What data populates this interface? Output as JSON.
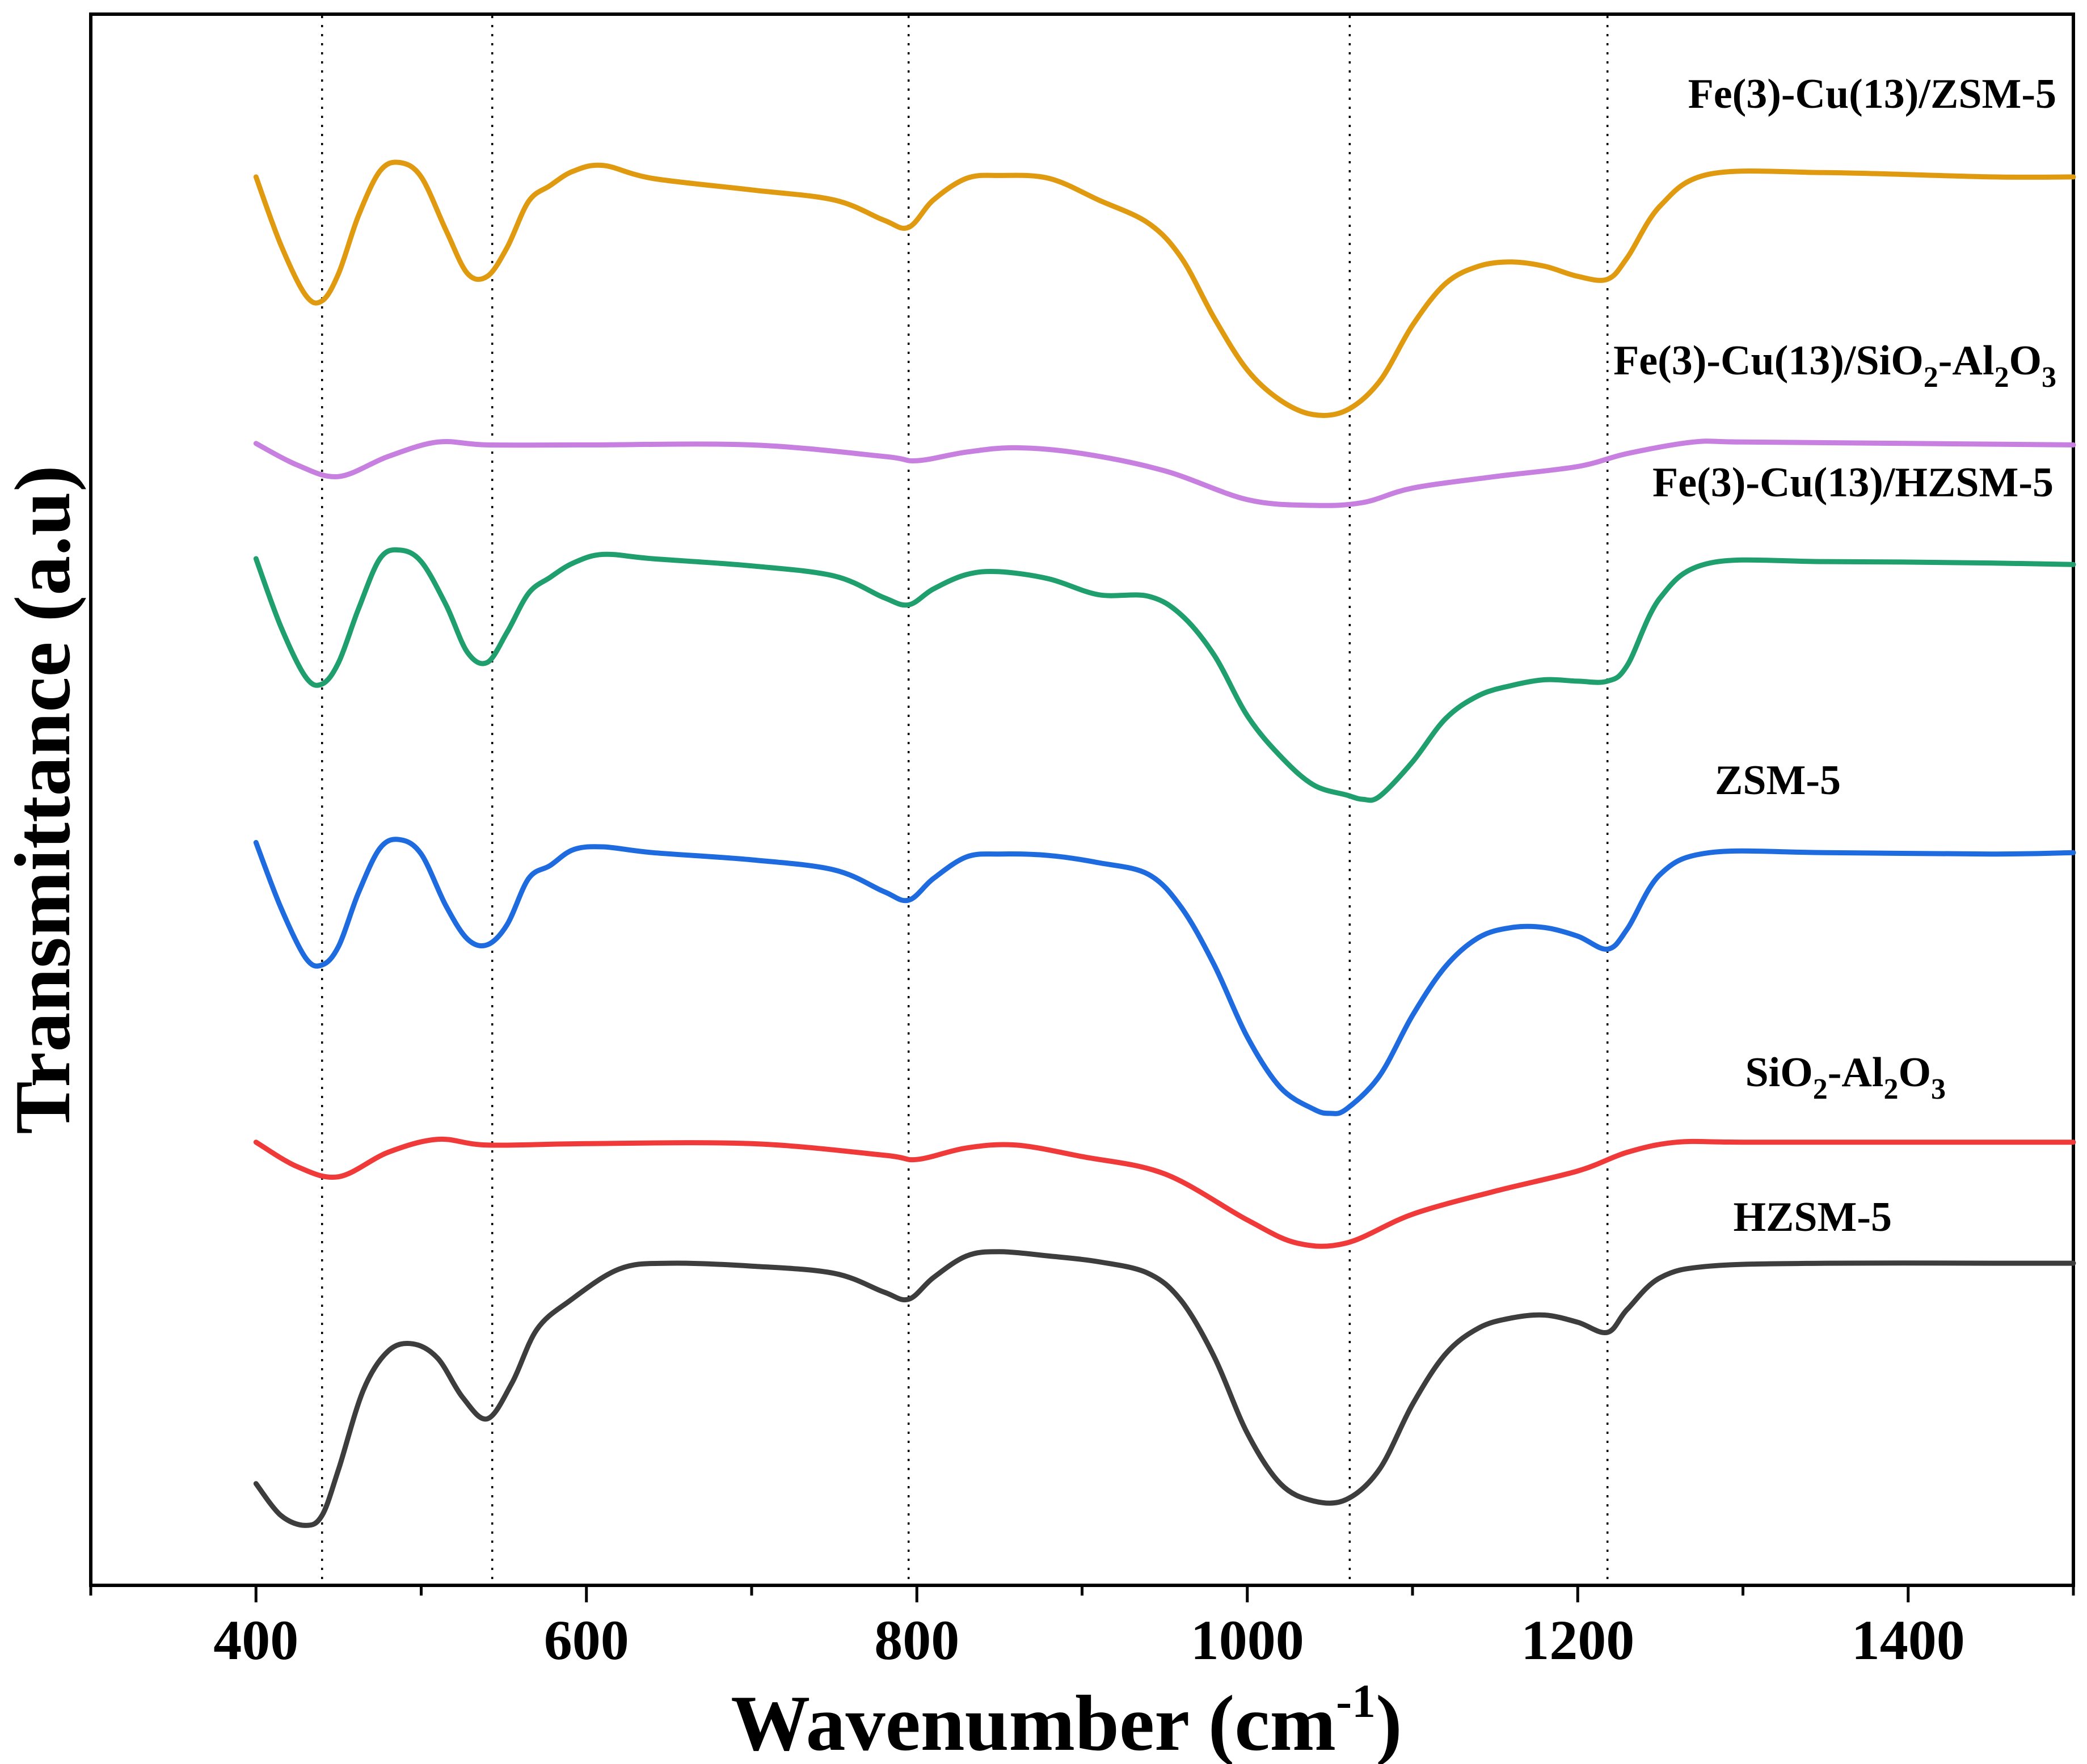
{
  "chart_data": {
    "type": "line",
    "title": "",
    "xlabel": "Wavenumber (cm",
    "xlabel_sup": "-1",
    "xlabel_tail": ")",
    "ylabel": "Transmittance (a.u)",
    "xlim": [
      300,
      1500
    ],
    "ylim": [
      0,
      100
    ],
    "xticks": [
      400,
      600,
      800,
      1000,
      1200,
      1400
    ],
    "xtick_labels": [
      "400",
      "600",
      "800",
      "1000",
      "1200",
      "1400"
    ],
    "yticks_shown": false,
    "reference_lines_x": [
      440,
      543,
      795,
      1062,
      1218
    ],
    "series": [
      {
        "name": "Fe(3)-Cu(13)/ZSM-5",
        "label_parts": [
          {
            "t": "Fe(3)-Cu(13)/ZSM-5"
          }
        ],
        "color": "#e09a10",
        "x": [
          400,
          415,
          430,
          440,
          450,
          462,
          475,
          487,
          500,
          515,
          528,
          540,
          552,
          565,
          578,
          592,
          610,
          640,
          700,
          750,
          780,
          795,
          810,
          830,
          850,
          880,
          910,
          940,
          960,
          980,
          1000,
          1020,
          1040,
          1060,
          1080,
          1100,
          1120,
          1140,
          1160,
          1180,
          1200,
          1218,
          1230,
          1250,
          1280,
          1350,
          1450,
          1500
        ],
        "y": [
          95.2,
          90.5,
          87.0,
          86.6,
          88.5,
          92.5,
          95.6,
          96.2,
          95.2,
          91.5,
          88.5,
          88.3,
          90.3,
          93.5,
          94.6,
          95.6,
          96.0,
          95.1,
          94.3,
          93.6,
          92.2,
          91.7,
          93.6,
          95.1,
          95.3,
          95.1,
          93.6,
          92.0,
          89.6,
          85.4,
          81.8,
          79.7,
          78.7,
          79.0,
          81.0,
          84.9,
          87.8,
          89.0,
          89.3,
          89.0,
          88.3,
          88.1,
          89.6,
          93.2,
          95.4,
          95.5,
          95.2,
          95.2
        ]
      },
      {
        "name": "Fe(3)-Cu(13)/SiO2-Al2O3",
        "label_parts": [
          {
            "t": "Fe(3)-Cu(13)/SiO"
          },
          {
            "t": "2",
            "sub": true
          },
          {
            "t": "-Al"
          },
          {
            "t": "2",
            "sub": true
          },
          {
            "t": "O"
          },
          {
            "t": "3",
            "sub": true
          }
        ],
        "color": "#c77fe0",
        "x": [
          400,
          425,
          450,
          480,
          510,
          540,
          600,
          700,
          780,
          800,
          830,
          860,
          900,
          950,
          1000,
          1040,
          1070,
          1100,
          1150,
          1200,
          1230,
          1270,
          1300,
          1400,
          1500
        ],
        "y": [
          76.7,
          75.2,
          74.4,
          75.8,
          76.8,
          76.6,
          76.6,
          76.6,
          75.8,
          75.5,
          76.1,
          76.4,
          76.0,
          74.8,
          72.8,
          72.4,
          72.6,
          73.6,
          74.4,
          75.1,
          76.0,
          76.8,
          76.8,
          76.7,
          76.6
        ]
      },
      {
        "name": "Fe(3)-Cu(13)/HZSM-5",
        "label_parts": [
          {
            "t": "Fe(3)-Cu(13)/HZSM-5"
          }
        ],
        "color": "#1f9e6e",
        "x": [
          400,
          415,
          430,
          440,
          450,
          462,
          475,
          487,
          500,
          515,
          528,
          540,
          552,
          565,
          578,
          592,
          610,
          640,
          700,
          750,
          780,
          795,
          810,
          830,
          850,
          880,
          910,
          940,
          960,
          980,
          1000,
          1020,
          1040,
          1060,
          1070,
          1080,
          1100,
          1120,
          1140,
          1160,
          1180,
          1200,
          1218,
          1230,
          1250,
          1280,
          1350,
          1450,
          1500
        ],
        "y": [
          68.7,
          64.0,
          60.5,
          60.0,
          61.5,
          65.2,
          68.7,
          69.3,
          68.5,
          65.5,
          62.2,
          61.5,
          63.6,
          66.3,
          67.4,
          68.4,
          69.0,
          68.7,
          68.2,
          67.5,
          66.0,
          65.5,
          66.6,
          67.6,
          67.8,
          67.3,
          66.2,
          66.1,
          64.8,
          62.0,
          57.8,
          55.0,
          53.0,
          52.3,
          52.0,
          52.2,
          54.6,
          57.6,
          59.2,
          59.9,
          60.3,
          60.2,
          60.2,
          61.3,
          66.0,
          68.4,
          68.5,
          68.4,
          68.3
        ]
      },
      {
        "name": "ZSM-5",
        "label_parts": [
          {
            "t": "ZSM-5"
          }
        ],
        "color": "#1e6be0",
        "x": [
          400,
          415,
          430,
          440,
          450,
          462,
          475,
          487,
          500,
          515,
          528,
          540,
          552,
          565,
          578,
          592,
          610,
          640,
          700,
          750,
          780,
          795,
          810,
          830,
          850,
          880,
          910,
          940,
          960,
          980,
          1000,
          1020,
          1040,
          1050,
          1060,
          1080,
          1100,
          1120,
          1140,
          1160,
          1180,
          1200,
          1218,
          1230,
          1250,
          1280,
          1350,
          1450,
          1500
        ],
        "y": [
          49.0,
          44.5,
          41.0,
          40.5,
          41.8,
          45.5,
          48.6,
          49.2,
          48.2,
          44.6,
          42.3,
          41.9,
          43.3,
          46.5,
          47.4,
          48.5,
          48.7,
          48.3,
          47.8,
          47.1,
          45.6,
          45.0,
          46.5,
          48.0,
          48.2,
          48.1,
          47.6,
          46.8,
          44.5,
          40.5,
          35.5,
          32.0,
          30.5,
          30.2,
          30.5,
          32.8,
          37.0,
          40.4,
          42.4,
          43.1,
          43.1,
          42.5,
          41.6,
          43.0,
          46.8,
          48.3,
          48.3,
          48.2,
          48.3
        ]
      },
      {
        "name": "SiO2-Al2O3",
        "label_parts": [
          {
            "t": "SiO"
          },
          {
            "t": "2",
            "sub": true
          },
          {
            "t": "-Al"
          },
          {
            "t": "2",
            "sub": true
          },
          {
            "t": "O"
          },
          {
            "t": "3",
            "sub": true
          }
        ],
        "color": "#f03a3a",
        "x": [
          400,
          425,
          450,
          480,
          510,
          540,
          600,
          700,
          780,
          800,
          830,
          860,
          900,
          950,
          1000,
          1030,
          1060,
          1100,
          1150,
          1200,
          1230,
          1260,
          1300,
          1400,
          1500
        ],
        "y": [
          28.2,
          26.5,
          25.8,
          27.5,
          28.4,
          28.0,
          28.1,
          28.1,
          27.3,
          27.0,
          27.8,
          28.0,
          27.2,
          26.0,
          22.8,
          21.2,
          21.2,
          23.2,
          24.8,
          26.2,
          27.5,
          28.2,
          28.2,
          28.2,
          28.2
        ]
      },
      {
        "name": "HZSM-5",
        "label_parts": [
          {
            "t": "HZSM-5"
          }
        ],
        "color": "#3d3d3d",
        "x": [
          400,
          415,
          430,
          440,
          450,
          465,
          480,
          495,
          510,
          525,
          540,
          555,
          570,
          590,
          620,
          650,
          700,
          750,
          780,
          795,
          810,
          830,
          850,
          880,
          910,
          940,
          960,
          980,
          1000,
          1020,
          1040,
          1060,
          1080,
          1100,
          1120,
          1140,
          1160,
          1180,
          1200,
          1218,
          1230,
          1250,
          1280,
          1350,
          1450,
          1500
        ],
        "y": [
          4.5,
          2.3,
          1.6,
          2.3,
          5.5,
          11.0,
          13.7,
          14.2,
          13.2,
          10.5,
          9.0,
          11.5,
          15.2,
          17.2,
          19.4,
          19.8,
          19.6,
          19.1,
          17.8,
          17.3,
          18.8,
          20.3,
          20.6,
          20.3,
          19.9,
          19.1,
          17.2,
          13.3,
          8.0,
          4.5,
          3.3,
          3.4,
          5.5,
          10.0,
          13.5,
          15.3,
          16.0,
          16.2,
          15.7,
          15.0,
          16.6,
          18.8,
          19.6,
          19.8,
          19.8,
          19.8
        ]
      }
    ]
  }
}
